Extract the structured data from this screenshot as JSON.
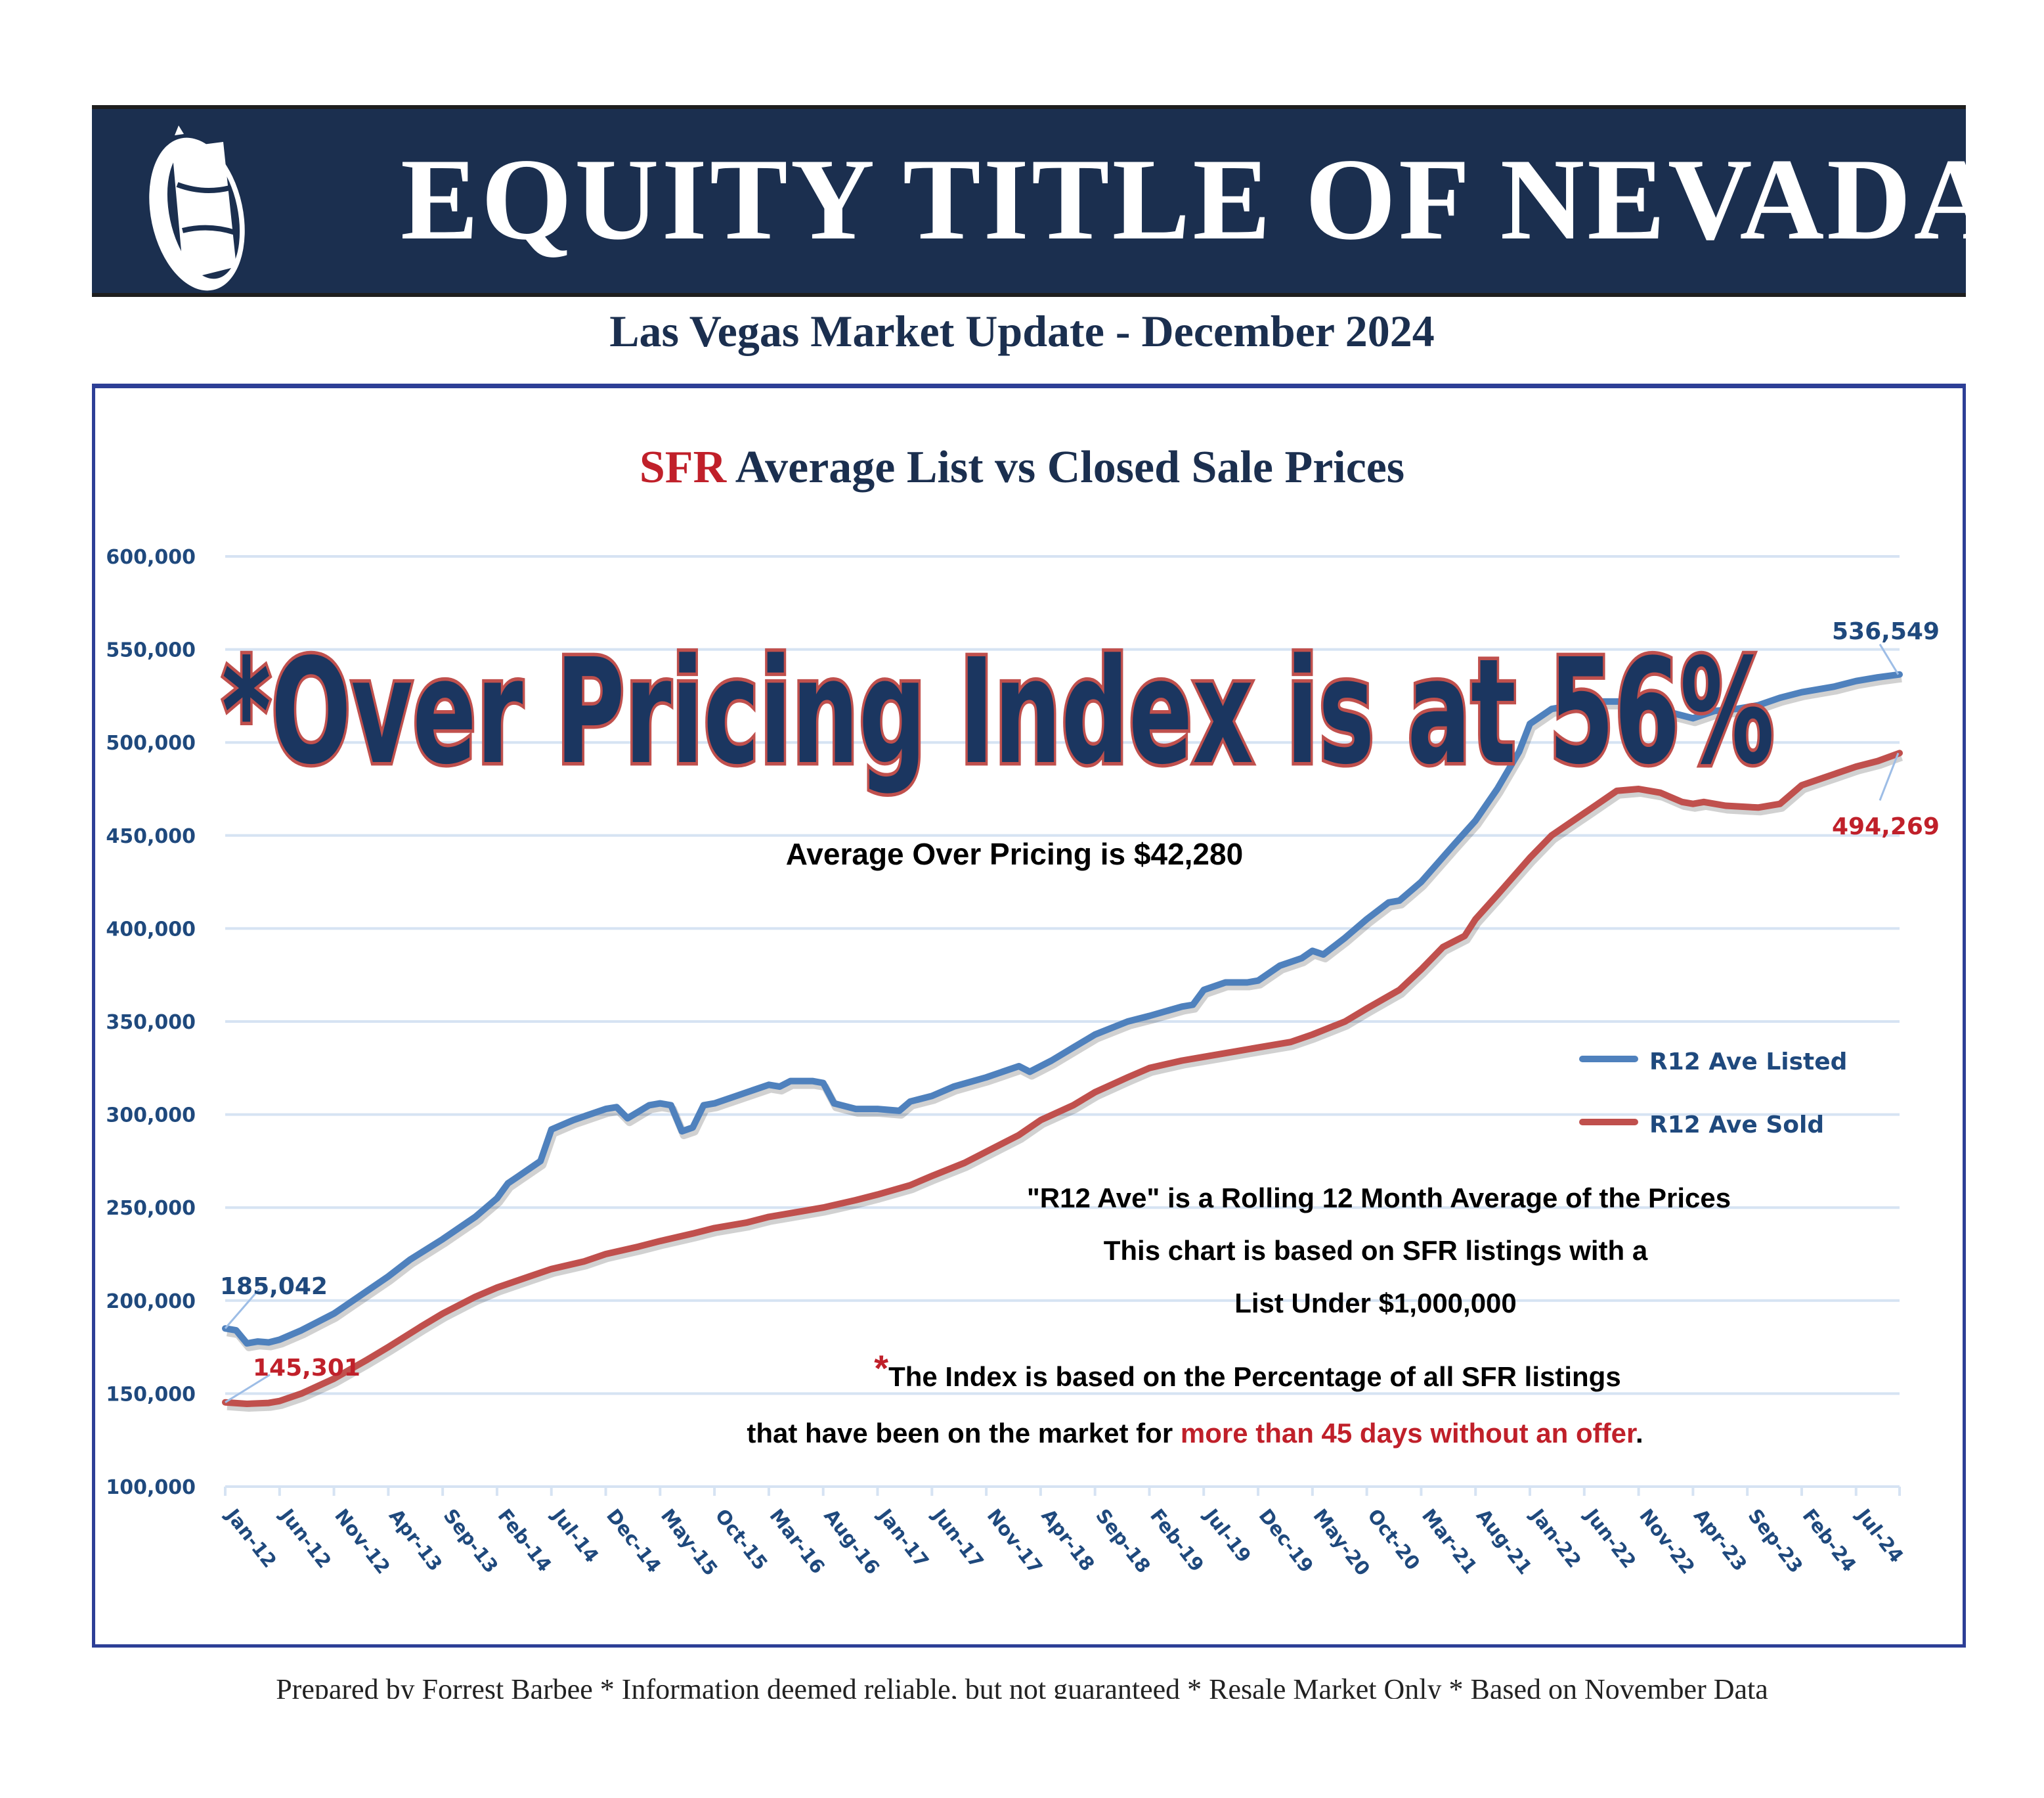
{
  "header": {
    "company": "EQUITY TITLE OF NEVADA",
    "subtitle": "Las Vegas Market Update - December 2024"
  },
  "colors": {
    "banner": "#1b2f4f",
    "listed": "#4f81bd",
    "sold": "#c0504d",
    "axis_text": "#1f497d",
    "grid": "#d6e3f3",
    "accent_red": "#c0202a"
  },
  "chart_data": {
    "type": "line",
    "title_prefix": "SFR",
    "title_rest": " Average List vs Closed Sale Prices",
    "xlabel": "",
    "ylabel": "",
    "ylim": [
      100000,
      600000
    ],
    "grid": true,
    "legend_placement": "right",
    "y_ticks": [
      100000,
      150000,
      200000,
      250000,
      300000,
      350000,
      400000,
      450000,
      500000,
      550000,
      600000
    ],
    "y_tick_labels": [
      "100,000",
      "150,000",
      "200,000",
      "250,000",
      "300,000",
      "350,000",
      "400,000",
      "450,000",
      "500,000",
      "550,000",
      "600,000"
    ],
    "x_tick_labels": [
      "Jan-12",
      "Jun-12",
      "Nov-12",
      "Apr-13",
      "Sep-13",
      "Feb-14",
      "Jul-14",
      "Dec-14",
      "May-15",
      "Oct-15",
      "Mar-16",
      "Aug-16",
      "Jan-17",
      "Jun-17",
      "Nov-17",
      "Apr-18",
      "Sep-18",
      "Feb-19",
      "Jul-19",
      "Dec-19",
      "May-20",
      "Oct-20",
      "Mar-21",
      "Aug-21",
      "Jan-22",
      "Jun-22",
      "Nov-22",
      "Apr-23",
      "Sep-23",
      "Feb-24",
      "Jul-24"
    ],
    "x_months_total": 155,
    "series": [
      {
        "name": "R12 Ave Listed",
        "color": "#4f81bd",
        "points": [
          [
            0,
            185042
          ],
          [
            1,
            184000
          ],
          [
            2,
            177000
          ],
          [
            3,
            178000
          ],
          [
            4,
            177500
          ],
          [
            5,
            179000
          ],
          [
            7,
            184000
          ],
          [
            10,
            193000
          ],
          [
            13,
            205000
          ],
          [
            15,
            213000
          ],
          [
            17,
            222000
          ],
          [
            20,
            233000
          ],
          [
            23,
            245000
          ],
          [
            25,
            255000
          ],
          [
            26,
            263000
          ],
          [
            27,
            267000
          ],
          [
            29,
            275000
          ],
          [
            30,
            292000
          ],
          [
            32,
            297000
          ],
          [
            35,
            303000
          ],
          [
            36,
            304000
          ],
          [
            37,
            298000
          ],
          [
            39,
            305000
          ],
          [
            40,
            306000
          ],
          [
            41,
            305000
          ],
          [
            42,
            291000
          ],
          [
            43,
            293000
          ],
          [
            44,
            305000
          ],
          [
            45,
            306000
          ],
          [
            47,
            310000
          ],
          [
            50,
            316000
          ],
          [
            51,
            315000
          ],
          [
            52,
            318000
          ],
          [
            54,
            318000
          ],
          [
            55,
            317000
          ],
          [
            56,
            306000
          ],
          [
            58,
            303000
          ],
          [
            60,
            303000
          ],
          [
            62,
            302000
          ],
          [
            63,
            307000
          ],
          [
            65,
            310000
          ],
          [
            67,
            315000
          ],
          [
            70,
            320000
          ],
          [
            72,
            324000
          ],
          [
            73,
            326000
          ],
          [
            74,
            323000
          ],
          [
            76,
            329000
          ],
          [
            78,
            336000
          ],
          [
            80,
            343000
          ],
          [
            83,
            350000
          ],
          [
            85,
            353000
          ],
          [
            88,
            358000
          ],
          [
            89,
            359000
          ],
          [
            90,
            367000
          ],
          [
            92,
            371000
          ],
          [
            94,
            371000
          ],
          [
            95,
            372000
          ],
          [
            97,
            380000
          ],
          [
            99,
            384000
          ],
          [
            100,
            388000
          ],
          [
            101,
            386000
          ],
          [
            103,
            395000
          ],
          [
            105,
            405000
          ],
          [
            107,
            414000
          ],
          [
            108,
            415000
          ],
          [
            110,
            425000
          ],
          [
            113,
            445000
          ],
          [
            115,
            458000
          ],
          [
            117,
            475000
          ],
          [
            119,
            495000
          ],
          [
            120,
            510000
          ],
          [
            122,
            518000
          ],
          [
            124,
            520000
          ],
          [
            126,
            522000
          ],
          [
            128,
            522000
          ],
          [
            130,
            522000
          ],
          [
            133,
            516000
          ],
          [
            135,
            513000
          ],
          [
            137,
            517000
          ],
          [
            139,
            518000
          ],
          [
            141,
            520000
          ],
          [
            143,
            524000
          ],
          [
            145,
            527000
          ],
          [
            148,
            530000
          ],
          [
            150,
            533000
          ],
          [
            152,
            535000
          ],
          [
            154,
            536549
          ]
        ],
        "end_label": "536,549",
        "start_label": "185,042"
      },
      {
        "name": "R12 Ave Sold",
        "color": "#c0504d",
        "points": [
          [
            0,
            145301
          ],
          [
            2,
            144500
          ],
          [
            4,
            145000
          ],
          [
            5,
            146000
          ],
          [
            7,
            150000
          ],
          [
            10,
            158000
          ],
          [
            13,
            168000
          ],
          [
            15,
            175000
          ],
          [
            18,
            186000
          ],
          [
            20,
            193000
          ],
          [
            23,
            202000
          ],
          [
            25,
            207000
          ],
          [
            28,
            213000
          ],
          [
            30,
            217000
          ],
          [
            33,
            221000
          ],
          [
            35,
            225000
          ],
          [
            38,
            229000
          ],
          [
            40,
            232000
          ],
          [
            43,
            236000
          ],
          [
            45,
            239000
          ],
          [
            48,
            242000
          ],
          [
            50,
            245000
          ],
          [
            53,
            248000
          ],
          [
            55,
            250000
          ],
          [
            58,
            254000
          ],
          [
            60,
            257000
          ],
          [
            63,
            262000
          ],
          [
            65,
            267000
          ],
          [
            68,
            274000
          ],
          [
            70,
            280000
          ],
          [
            73,
            289000
          ],
          [
            75,
            297000
          ],
          [
            78,
            305000
          ],
          [
            80,
            312000
          ],
          [
            83,
            320000
          ],
          [
            85,
            325000
          ],
          [
            88,
            329000
          ],
          [
            90,
            331000
          ],
          [
            93,
            334000
          ],
          [
            95,
            336000
          ],
          [
            98,
            339000
          ],
          [
            100,
            343000
          ],
          [
            103,
            350000
          ],
          [
            105,
            357000
          ],
          [
            108,
            367000
          ],
          [
            110,
            378000
          ],
          [
            112,
            390000
          ],
          [
            114,
            396000
          ],
          [
            115,
            405000
          ],
          [
            117,
            418000
          ],
          [
            120,
            438000
          ],
          [
            122,
            450000
          ],
          [
            124,
            458000
          ],
          [
            126,
            466000
          ],
          [
            128,
            474000
          ],
          [
            130,
            475000
          ],
          [
            132,
            473000
          ],
          [
            134,
            468000
          ],
          [
            135,
            467000
          ],
          [
            136,
            468000
          ],
          [
            138,
            466000
          ],
          [
            141,
            465000
          ],
          [
            143,
            467000
          ],
          [
            145,
            477000
          ],
          [
            147,
            481000
          ],
          [
            150,
            487000
          ],
          [
            152,
            490000
          ],
          [
            154,
            494269
          ]
        ],
        "end_label": "494,269",
        "start_label": "145,301"
      }
    ]
  },
  "annotations": {
    "index_headline": "*Over Pricing Index is at 56%",
    "avg_over_pricing": "Average Over Pricing is $42,280",
    "note_line1": "\"R12 Ave\" is a Rolling 12 Month Average of the Prices",
    "note_line2": "This chart is based on SFR listings with a",
    "note_line3": "List Under $1,000,000",
    "note_star": "*",
    "note_line4": "The Index is based on the Percentage of all SFR listings",
    "note_line5_black": "that have been on the market for ",
    "note_line5_red": "more than 45 days without an offer",
    "note_line5_end": "."
  },
  "footer": {
    "text": "Prepared by Forrest Barbee * Information deemed reliable, but not guaranteed * Resale Market Only * Based on November Data"
  }
}
